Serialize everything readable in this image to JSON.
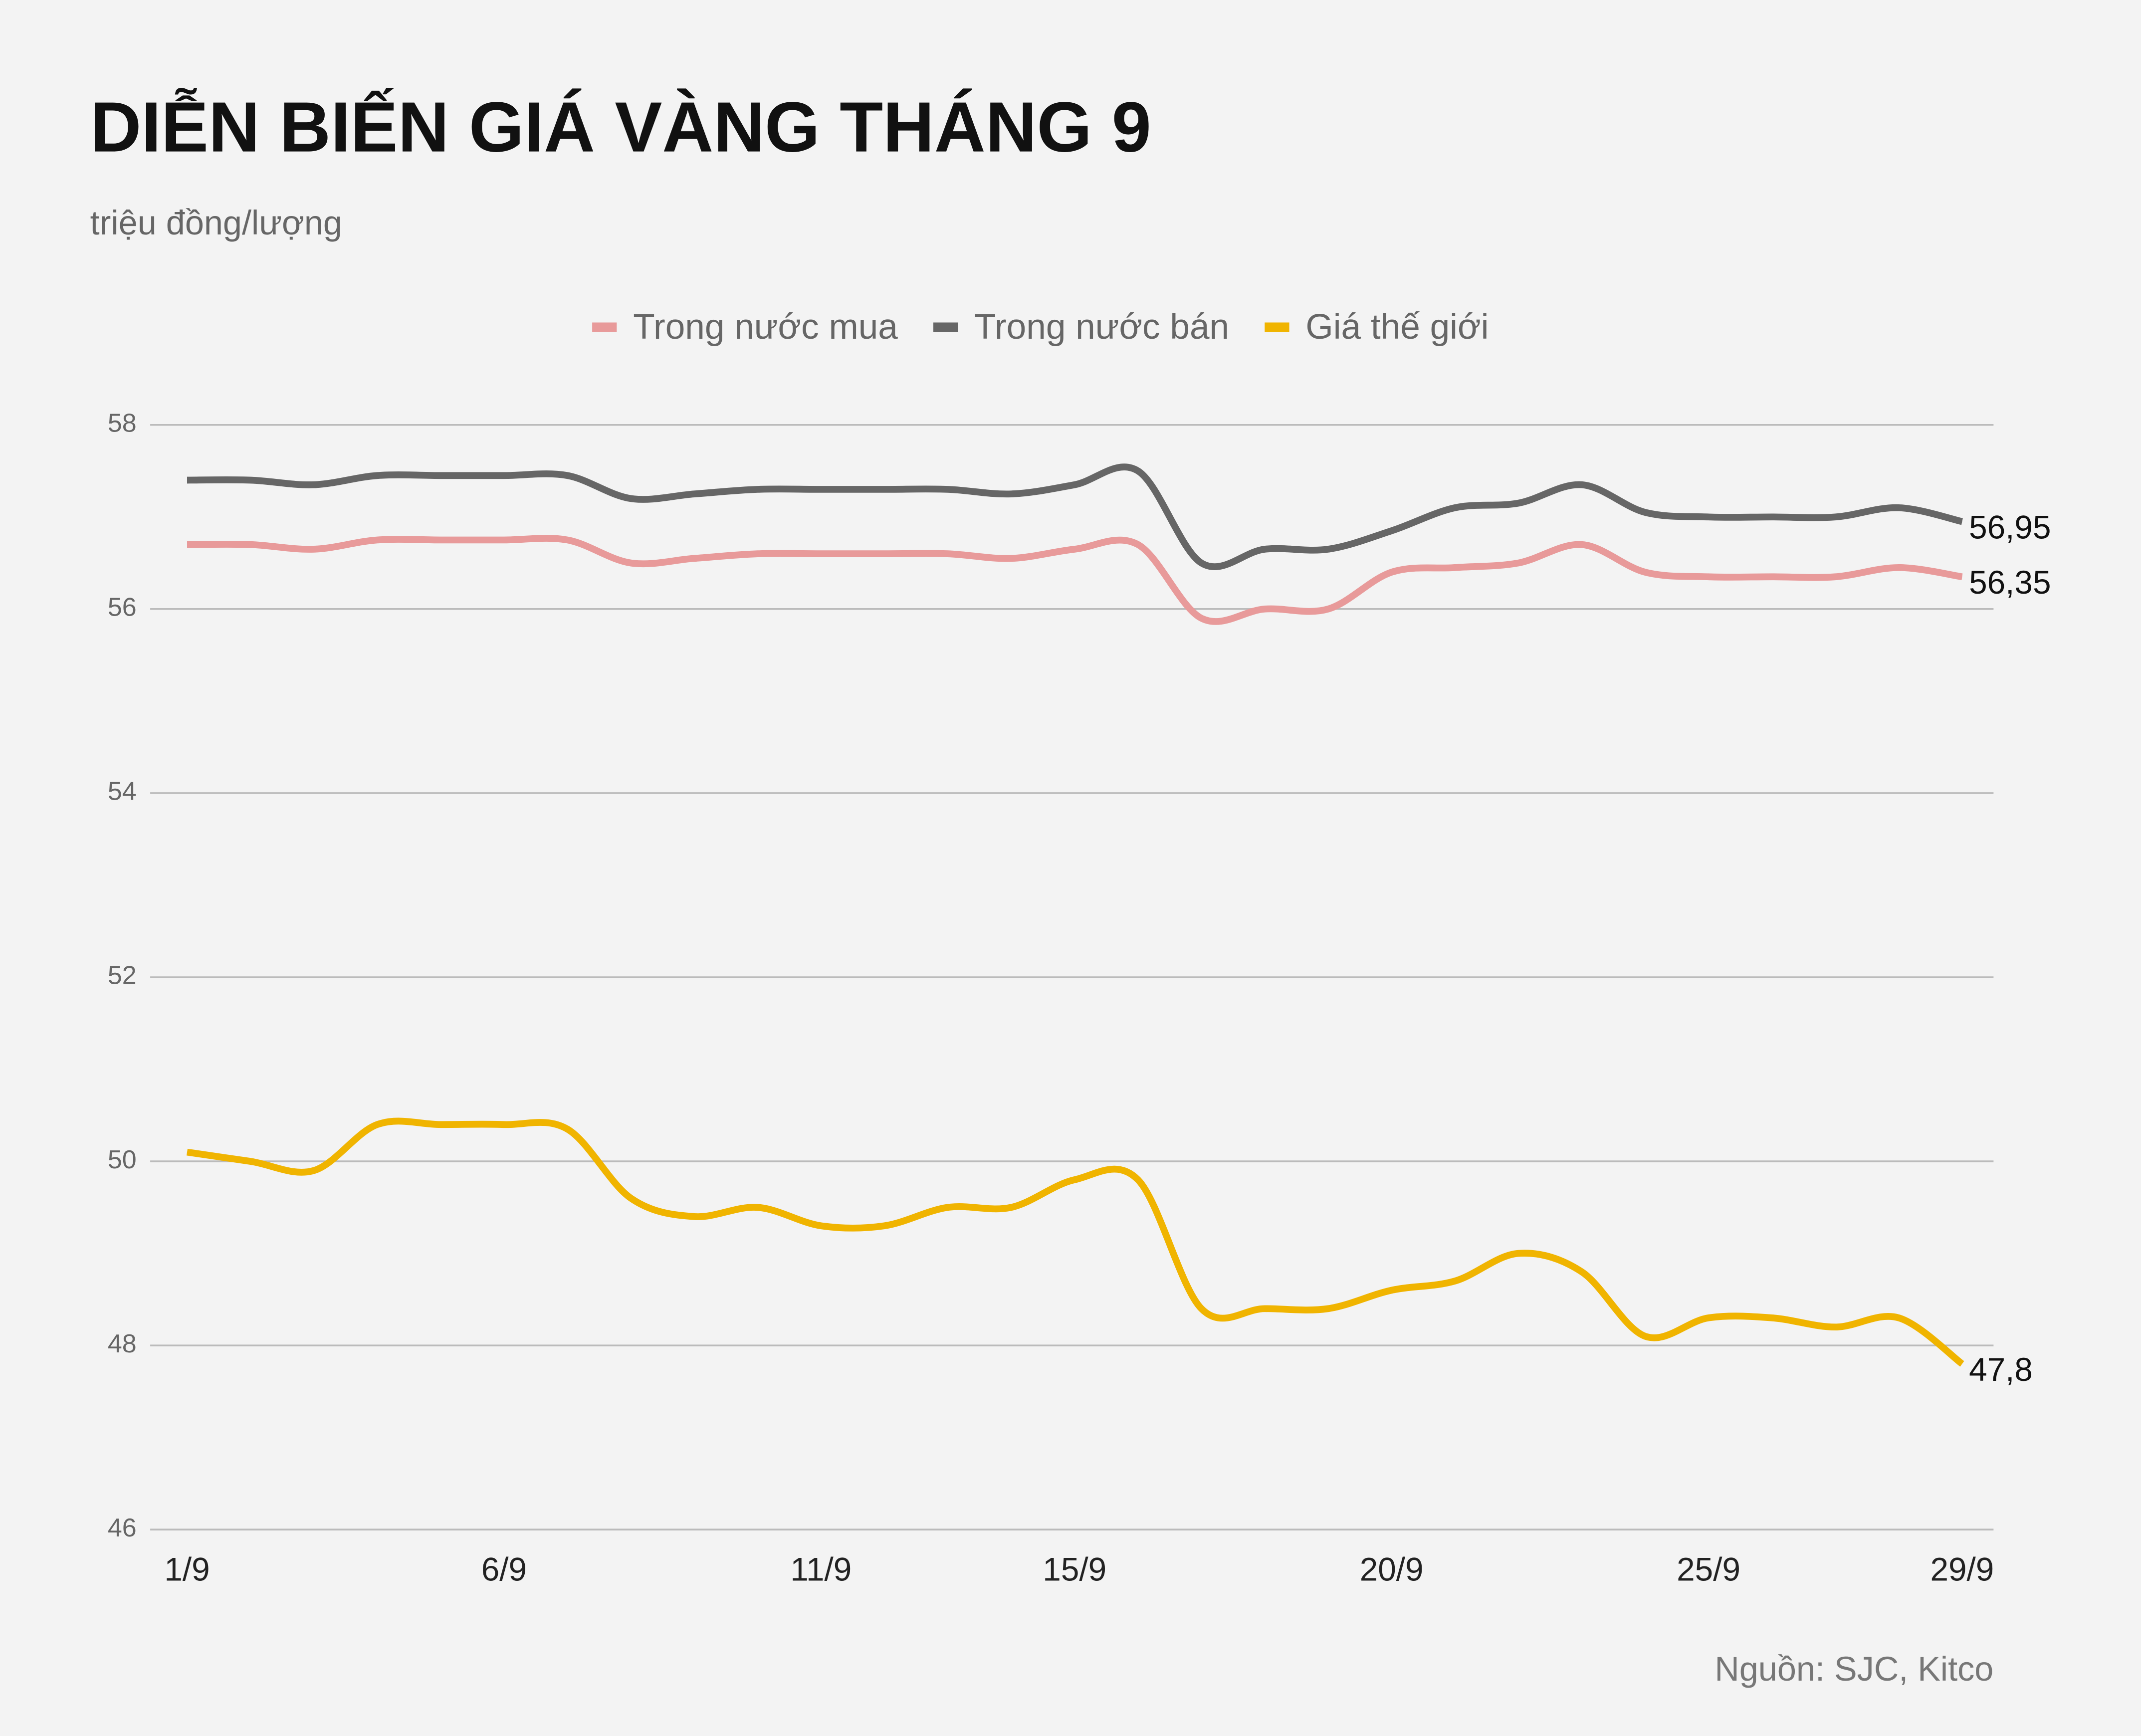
{
  "chart_data": {
    "type": "line",
    "title": "DIỄN BIẾN GIÁ VÀNG THÁNG 9",
    "subtitle": "triệu đồng/lượng",
    "source": "Nguồn: SJC, Kitco",
    "categories": [
      "1/9",
      null,
      null,
      null,
      null,
      "6/9",
      null,
      null,
      null,
      null,
      "11/9",
      null,
      null,
      null,
      "15/9",
      null,
      null,
      null,
      null,
      "20/9",
      null,
      null,
      null,
      null,
      "25/9",
      null,
      null,
      null,
      "29/9"
    ],
    "series": [
      {
        "name": "Trong nước mua",
        "color": "#e89a9a",
        "values": [
          56.7,
          56.7,
          56.65,
          56.75,
          56.75,
          56.75,
          56.75,
          56.5,
          56.55,
          56.6,
          56.6,
          56.6,
          56.6,
          56.55,
          56.65,
          56.7,
          55.9,
          56.0,
          56.0,
          56.4,
          56.45,
          56.5,
          56.7,
          56.4,
          56.35,
          56.35,
          56.35,
          56.45,
          56.35
        ],
        "value_labels": [
          null,
          null,
          null,
          null,
          null,
          null,
          null,
          null,
          null,
          null,
          null,
          null,
          null,
          null,
          null,
          null,
          null,
          null,
          null,
          null,
          null,
          null,
          null,
          null,
          null,
          null,
          null,
          null,
          "56,35"
        ]
      },
      {
        "name": "Trong nước bán",
        "color": "#666666",
        "values": [
          57.4,
          57.4,
          57.35,
          57.45,
          57.45,
          57.45,
          57.45,
          57.2,
          57.25,
          57.3,
          57.3,
          57.3,
          57.3,
          57.25,
          57.35,
          57.5,
          56.5,
          56.65,
          56.65,
          56.85,
          57.1,
          57.15,
          57.35,
          57.05,
          57.0,
          57.0,
          57.0,
          57.1,
          56.95
        ],
        "value_labels": [
          null,
          null,
          null,
          null,
          null,
          null,
          null,
          null,
          null,
          null,
          null,
          null,
          null,
          null,
          null,
          null,
          null,
          null,
          null,
          null,
          null,
          null,
          null,
          null,
          null,
          null,
          null,
          null,
          "56,95"
        ]
      },
      {
        "name": "Giá thế giới",
        "color": "#f0b400",
        "values": [
          50.1,
          50.0,
          49.9,
          50.4,
          50.4,
          50.4,
          50.35,
          49.6,
          49.4,
          49.5,
          49.3,
          49.3,
          49.5,
          49.5,
          49.8,
          49.8,
          48.4,
          48.4,
          48.4,
          48.6,
          48.7,
          49.0,
          48.8,
          48.1,
          48.3,
          48.3,
          48.2,
          48.3,
          47.8
        ],
        "value_labels": [
          null,
          null,
          null,
          null,
          null,
          null,
          null,
          null,
          null,
          null,
          null,
          null,
          null,
          null,
          null,
          null,
          null,
          null,
          null,
          null,
          null,
          null,
          null,
          null,
          null,
          null,
          null,
          null,
          "47,8"
        ]
      }
    ],
    "ylim": [
      46,
      58
    ],
    "yticks": [
      46,
      48,
      50,
      52,
      54,
      56,
      58
    ],
    "grid": true,
    "legend": "top"
  }
}
